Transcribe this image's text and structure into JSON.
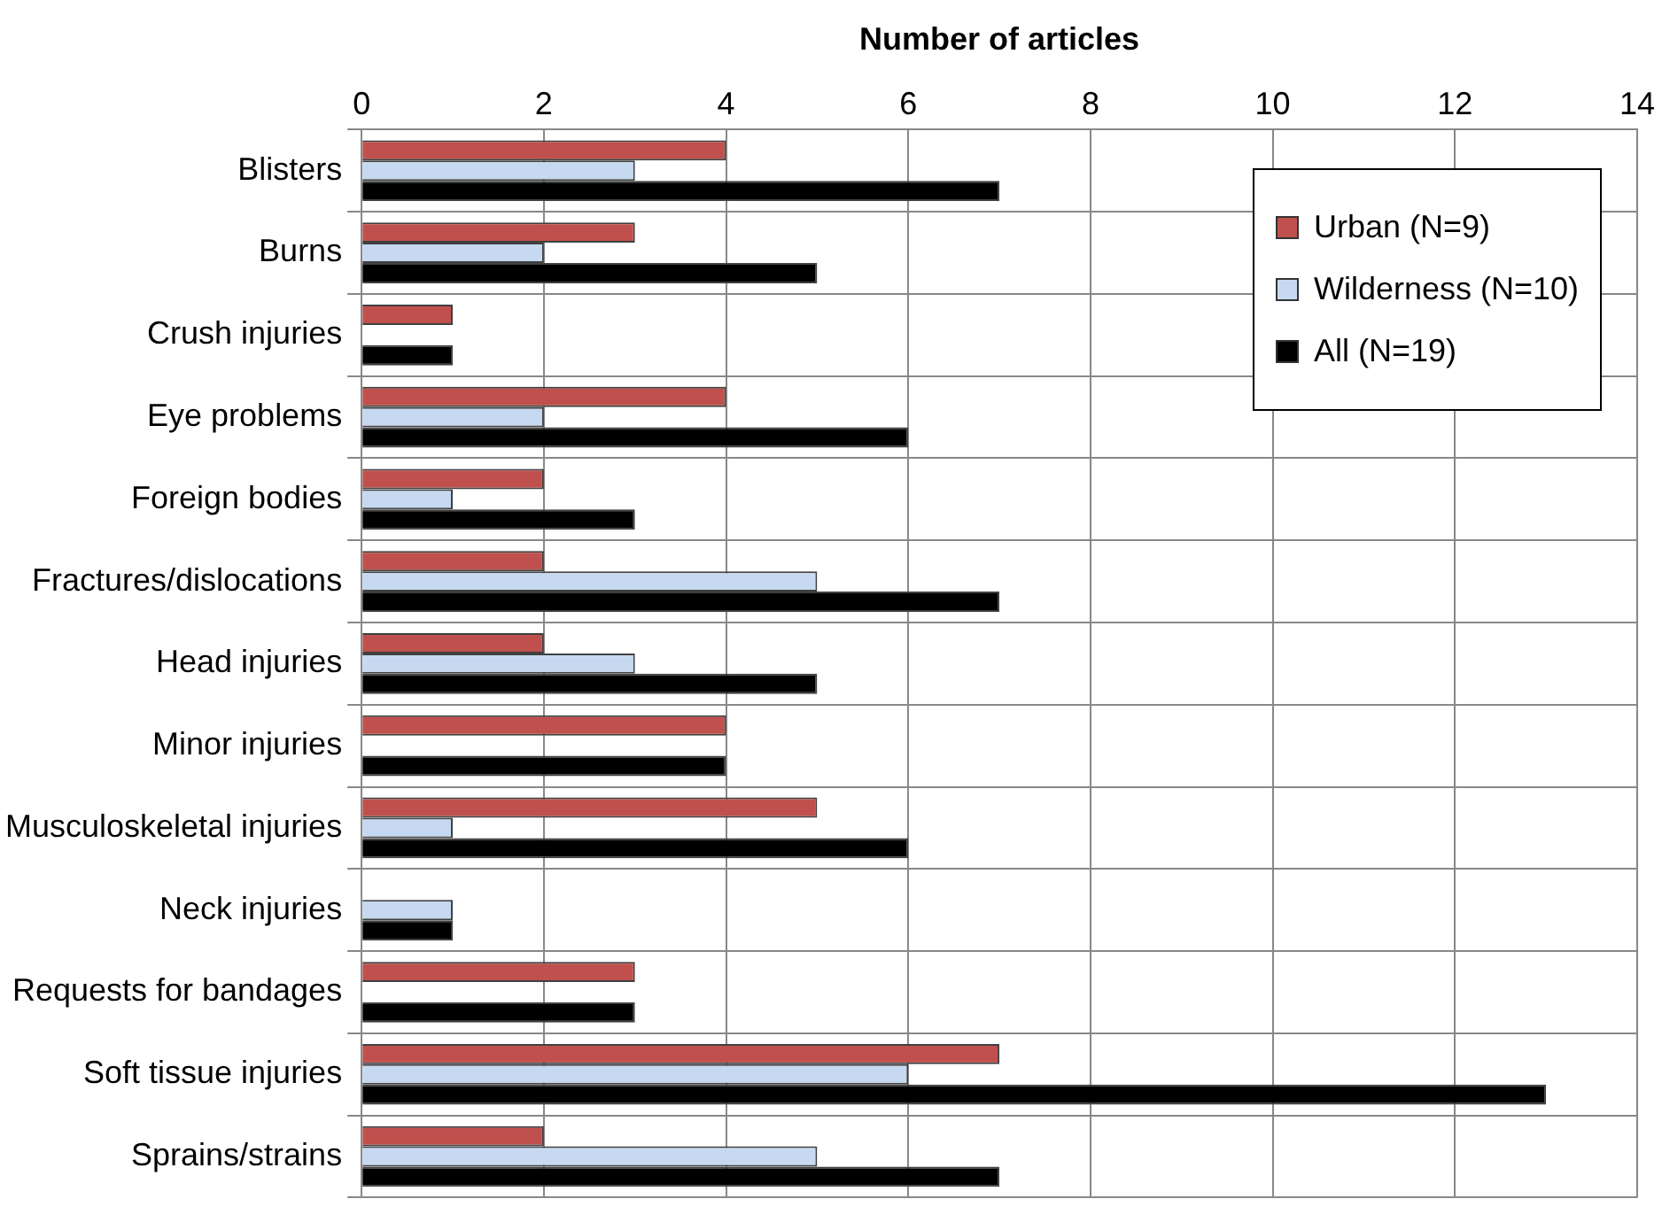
{
  "chart_data": {
    "type": "bar",
    "orientation": "horizontal",
    "xlabel": "Number of articles",
    "categories": [
      "Blisters",
      "Burns",
      "Crush injuries",
      "Eye problems",
      "Foreign bodies",
      "Fractures/dislocations",
      "Head injuries",
      "Minor injuries",
      "Musculoskeletal injuries",
      "Neck injuries",
      "Requests for bandages",
      "Soft tissue injuries",
      "Sprains/strains"
    ],
    "series": [
      {
        "name": "Urban (N=9)",
        "color": "#c0504d",
        "values": [
          4,
          3,
          1,
          4,
          2,
          2,
          2,
          4,
          5,
          0,
          3,
          7,
          2
        ]
      },
      {
        "name": "Wilderness (N=10)",
        "color": "#c6d9f1",
        "values": [
          3,
          2,
          0,
          2,
          1,
          5,
          3,
          0,
          1,
          1,
          0,
          6,
          5
        ]
      },
      {
        "name": "All (N=19)",
        "color": "#000000",
        "values": [
          7,
          5,
          1,
          6,
          3,
          7,
          5,
          4,
          6,
          1,
          3,
          13,
          7
        ]
      }
    ],
    "xlim": [
      0,
      14
    ],
    "xticks": [
      0,
      2,
      4,
      6,
      8,
      10,
      12,
      14
    ],
    "grid": true,
    "legend": "top right"
  }
}
